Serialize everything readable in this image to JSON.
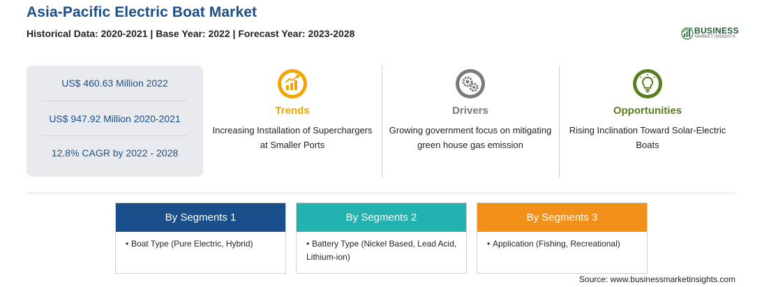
{
  "header": {
    "title": "Asia-Pacific Electric Boat Market",
    "subtitle": "Historical Data: 2020-2021 | Base Year: 2022 | Forecast Year: 2023-2028"
  },
  "logo": {
    "main": "BUSINESS",
    "sub": "MARKET INSIGHTS",
    "icon": "bar-growth-globe-icon"
  },
  "stats": [
    "US$ 460.63 Million 2022",
    "US$ 947.92 Million 2020-2021",
    "12.8% CAGR by 2022 - 2028"
  ],
  "columns": [
    {
      "title": "Trends",
      "text": "Increasing Installation of Superchargers at Smaller Ports",
      "color": "#f0a500",
      "icon": "trend-chart-icon"
    },
    {
      "title": "Drivers",
      "text": "Growing government focus on mitigating green house gas emission",
      "color": "#7a7a7a",
      "icon": "gears-icon"
    },
    {
      "title": "Opportunities",
      "text": "Rising Inclination Toward Solar-Electric Boats",
      "color": "#5b7d1f",
      "icon": "lightbulb-icon"
    }
  ],
  "segments": [
    {
      "label": "By Segments 1",
      "item": "Boat Type (Pure Electric, Hybrid)",
      "color": "#1a4f8b"
    },
    {
      "label": "By Segments 2",
      "item": "Battery Type (Nickel Based, Lead Acid, Lithium-ion)",
      "color": "#22b3b0"
    },
    {
      "label": "By Segments 3",
      "item": "Application (Fishing, Recreational)",
      "color": "#f39019"
    }
  ],
  "source": "Source: www.businessmarketinsights.com"
}
